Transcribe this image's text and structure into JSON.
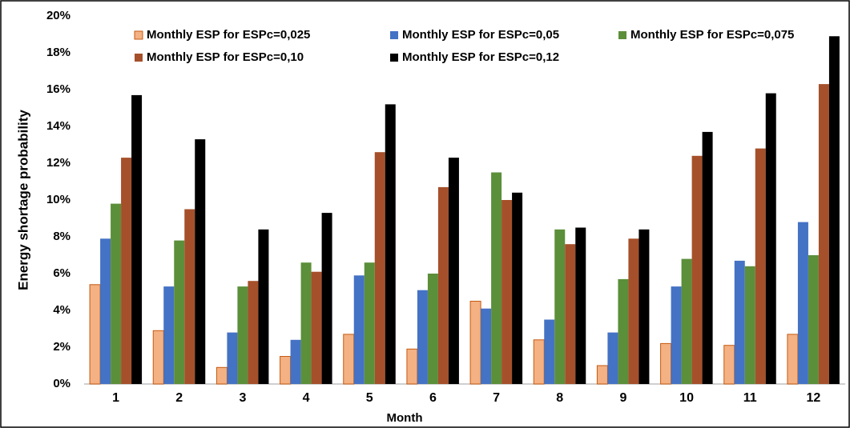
{
  "chart_data": {
    "type": "bar",
    "y_label": "Energy shortage probability",
    "x_label": "Month",
    "categories": [
      "1",
      "2",
      "3",
      "4",
      "5",
      "6",
      "7",
      "8",
      "9",
      "10",
      "11",
      "12"
    ],
    "series": [
      {
        "name": "Monthly ESP for ESPc=0,025",
        "color": "#f4b183",
        "values": [
          5.4,
          2.9,
          0.9,
          1.5,
          2.7,
          1.9,
          4.5,
          2.4,
          1.0,
          2.2,
          2.1,
          2.7
        ]
      },
      {
        "name": "Monthly ESP for ESPc=0,05",
        "color": "#4472c4",
        "values": [
          7.9,
          5.3,
          2.8,
          2.4,
          5.9,
          5.1,
          4.1,
          3.5,
          2.8,
          5.3,
          6.7,
          8.8
        ]
      },
      {
        "name": "Monthly ESP for ESPc=0,075",
        "color": "#5b8f3a",
        "values": [
          9.8,
          7.8,
          5.3,
          6.6,
          6.6,
          6.0,
          11.5,
          8.4,
          5.7,
          6.8,
          6.4,
          7.0
        ]
      },
      {
        "name": "Monthly ESP for ESPc=0,10",
        "color": "#a5502a",
        "values": [
          12.3,
          9.5,
          5.6,
          6.1,
          12.6,
          10.7,
          10.0,
          7.6,
          7.9,
          12.4,
          12.8,
          16.3
        ]
      },
      {
        "name": "Monthly ESP for ESPc=0,12",
        "color": "#000000",
        "values": [
          15.7,
          13.3,
          8.4,
          9.3,
          15.2,
          12.3,
          10.4,
          8.5,
          8.4,
          13.7,
          15.8,
          18.9
        ]
      }
    ],
    "ylim": [
      0,
      20
    ],
    "yticks": [
      {
        "value": 0,
        "label": "0%"
      },
      {
        "value": 2,
        "label": "2%"
      },
      {
        "value": 4,
        "label": "4%"
      },
      {
        "value": 6,
        "label": "6%"
      },
      {
        "value": 8,
        "label": "8%"
      },
      {
        "value": 10,
        "label": "10%"
      },
      {
        "value": 12,
        "label": "12%"
      },
      {
        "value": 14,
        "label": "14%"
      },
      {
        "value": 16,
        "label": "16%"
      },
      {
        "value": 18,
        "label": "18%"
      },
      {
        "value": 20,
        "label": "20%"
      }
    ],
    "grid": false
  }
}
